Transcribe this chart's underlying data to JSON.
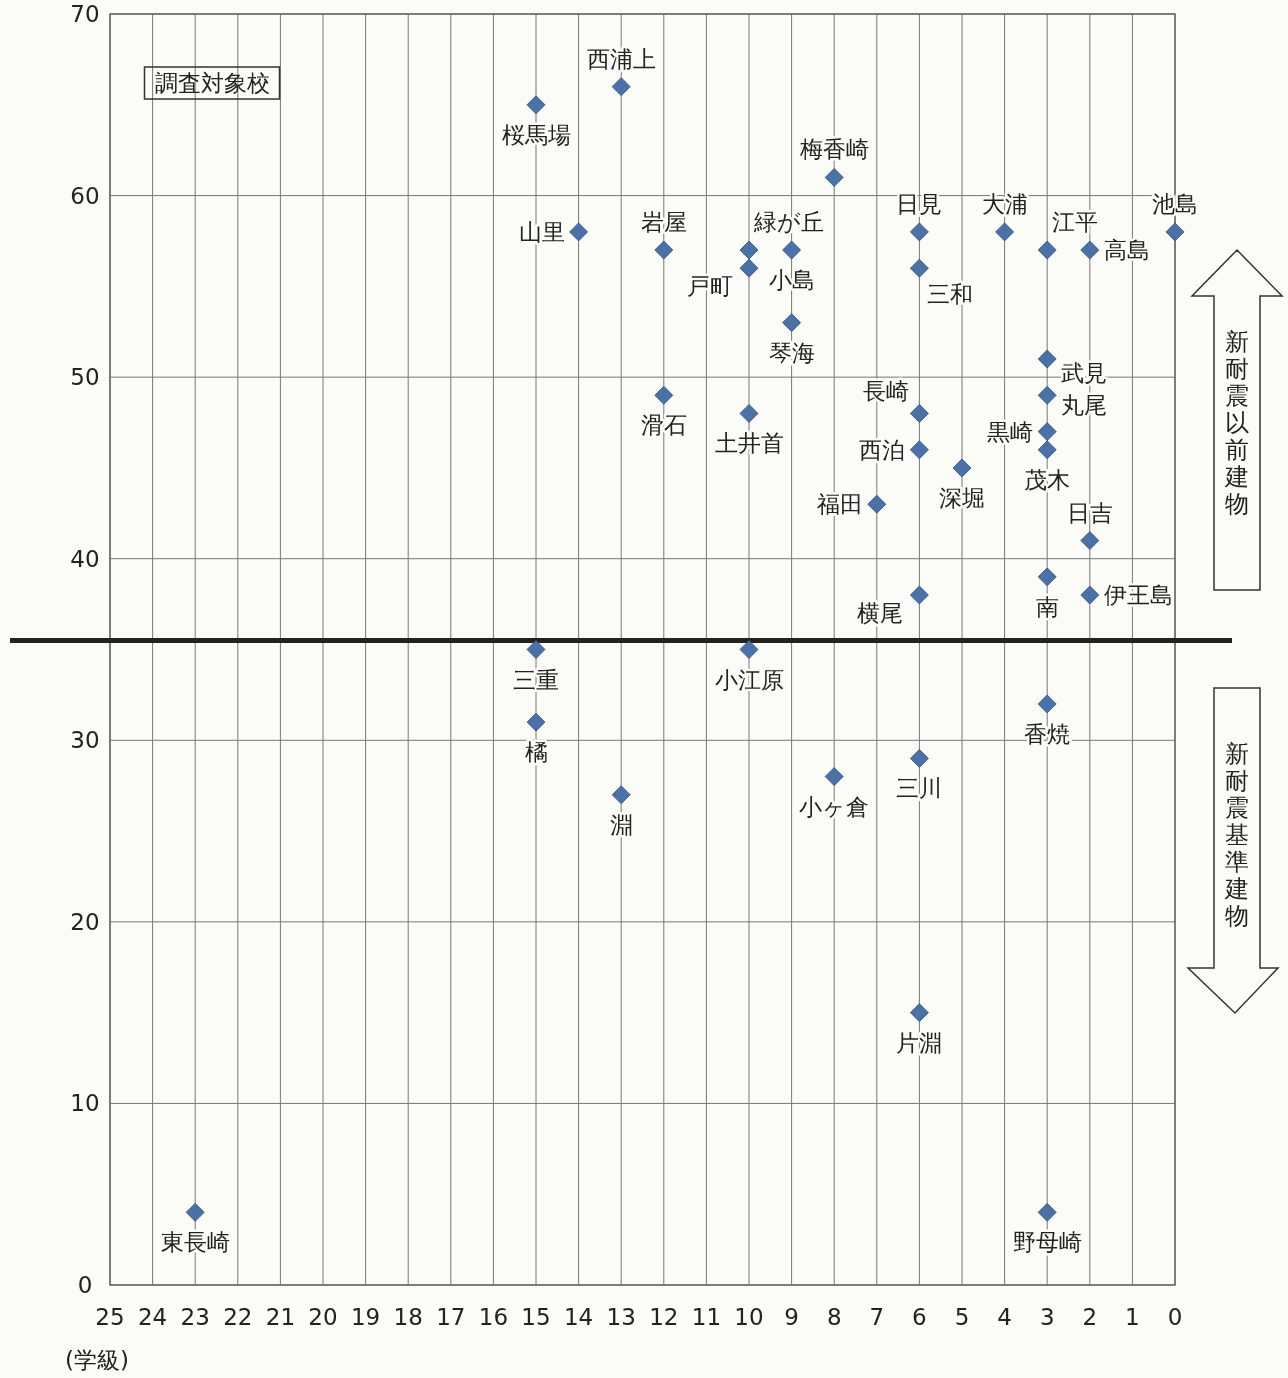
{
  "chart_data": {
    "type": "scatter",
    "xlabel": "(学級)",
    "xlim": [
      25,
      0
    ],
    "xticks": [
      25,
      24,
      23,
      22,
      21,
      20,
      19,
      18,
      17,
      16,
      15,
      14,
      13,
      12,
      11,
      10,
      9,
      8,
      7,
      6,
      5,
      4,
      3,
      2,
      1,
      0
    ],
    "ylim": [
      0,
      70
    ],
    "yticks": [
      0,
      10,
      20,
      30,
      40,
      50,
      60,
      70
    ],
    "grid": true,
    "marker": "diamond",
    "series": [
      {
        "color": "#4a72a8",
        "x": [
          13,
          15,
          8,
          14,
          12,
          10,
          9,
          10,
          9,
          6,
          6,
          4,
          3,
          2,
          0,
          3,
          3,
          3,
          3,
          6,
          6,
          5,
          7,
          12,
          10,
          2,
          3,
          2,
          6,
          15,
          10,
          15,
          3,
          13,
          8,
          6,
          6,
          23,
          3
        ],
        "values": [
          66,
          65,
          61,
          58,
          57,
          57,
          57,
          56,
          53,
          58,
          56,
          58,
          57,
          57,
          58,
          51,
          49,
          47,
          46,
          48,
          46,
          45,
          43,
          49,
          48,
          41,
          39,
          38,
          38,
          35,
          35,
          31,
          32,
          27,
          28,
          29,
          15,
          4,
          4
        ]
      }
    ],
    "ref_lines": [
      {
        "axis": "y",
        "value": 35.5,
        "color": "#222222"
      }
    ],
    "annotations": [
      "調査対象校",
      "新耐震以前建物",
      "新耐震基準建物",
      {
        "text": "西浦上",
        "x": 13,
        "y": 66
      },
      {
        "text": "桜馬場",
        "x": 15,
        "y": 65
      },
      {
        "text": "梅香崎",
        "x": 8,
        "y": 61
      },
      {
        "text": "山里",
        "x": 14,
        "y": 58
      },
      {
        "text": "岩屋",
        "x": 12,
        "y": 57
      },
      {
        "text": "緑が丘",
        "x": 10,
        "y": 57
      },
      {
        "text": "小島",
        "x": 9,
        "y": 57
      },
      {
        "text": "戸町",
        "x": 10,
        "y": 56
      },
      {
        "text": "琴海",
        "x": 9,
        "y": 53
      },
      {
        "text": "日見",
        "x": 6,
        "y": 58
      },
      {
        "text": "三和",
        "x": 6,
        "y": 56
      },
      {
        "text": "大浦",
        "x": 4,
        "y": 58
      },
      {
        "text": "江平",
        "x": 3,
        "y": 57
      },
      {
        "text": "高島",
        "x": 2,
        "y": 57
      },
      {
        "text": "池島",
        "x": 0,
        "y": 58
      },
      {
        "text": "武見",
        "x": 3,
        "y": 51
      },
      {
        "text": "丸尾",
        "x": 3,
        "y": 49
      },
      {
        "text": "黒崎",
        "x": 3,
        "y": 47
      },
      {
        "text": "茂木",
        "x": 3,
        "y": 46
      },
      {
        "text": "長崎",
        "x": 6,
        "y": 48
      },
      {
        "text": "西泊",
        "x": 6,
        "y": 46
      },
      {
        "text": "深堀",
        "x": 5,
        "y": 45
      },
      {
        "text": "福田",
        "x": 7,
        "y": 43
      },
      {
        "text": "滑石",
        "x": 12,
        "y": 49
      },
      {
        "text": "土井首",
        "x": 10,
        "y": 48
      },
      {
        "text": "日吉",
        "x": 2,
        "y": 41
      },
      {
        "text": "南",
        "x": 3,
        "y": 39
      },
      {
        "text": "伊王島",
        "x": 2,
        "y": 38
      },
      {
        "text": "横尾",
        "x": 6,
        "y": 38
      },
      {
        "text": "三重",
        "x": 15,
        "y": 35
      },
      {
        "text": "小江原",
        "x": 10,
        "y": 35
      },
      {
        "text": "橘",
        "x": 15,
        "y": 31
      },
      {
        "text": "香焼",
        "x": 3,
        "y": 32
      },
      {
        "text": "淵",
        "x": 13,
        "y": 27
      },
      {
        "text": "小ヶ倉",
        "x": 8,
        "y": 28
      },
      {
        "text": "三川",
        "x": 6,
        "y": 29
      },
      {
        "text": "片淵",
        "x": 6,
        "y": 15
      },
      {
        "text": "東長崎",
        "x": 23,
        "y": 4
      },
      {
        "text": "野母崎",
        "x": 3,
        "y": 4
      }
    ]
  }
}
